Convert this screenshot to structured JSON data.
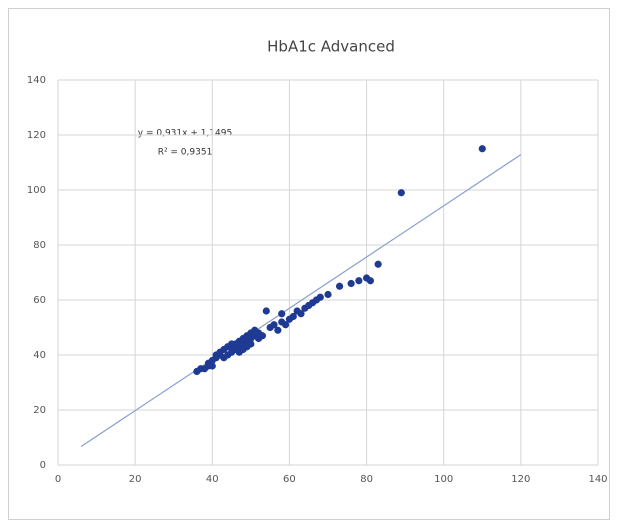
{
  "chart_data": {
    "type": "scatter",
    "title": "HbA1c Advanced",
    "annotations": [
      "y = 0,931x + 1,1495",
      "R² = 0,9351"
    ],
    "x": [
      36,
      37,
      38,
      39,
      39,
      40,
      40,
      41,
      41,
      42,
      42,
      43,
      43,
      44,
      44,
      45,
      45,
      45,
      46,
      46,
      47,
      47,
      47,
      48,
      48,
      48,
      49,
      49,
      49,
      50,
      50,
      50,
      51,
      51,
      52,
      52,
      53,
      54,
      55,
      56,
      57,
      58,
      58,
      59,
      60,
      61,
      62,
      63,
      64,
      65,
      66,
      67,
      68,
      70,
      73,
      76,
      78,
      80,
      81,
      83,
      89,
      110
    ],
    "values": [
      34,
      35,
      35,
      37,
      36,
      36,
      38,
      39,
      40,
      40,
      41,
      39,
      42,
      40,
      43,
      41,
      43,
      44,
      42,
      44,
      43,
      45,
      41,
      44,
      46,
      42,
      45,
      47,
      43,
      46,
      48,
      44,
      47,
      49,
      48,
      46,
      47,
      56,
      50,
      51,
      49,
      52,
      55,
      51,
      53,
      54,
      56,
      55,
      57,
      58,
      59,
      60,
      61,
      62,
      65,
      66,
      67,
      68,
      67,
      73,
      99,
      115
    ],
    "color": "#1f3a93",
    "trendline": {
      "slope": 0.931,
      "intercept": 1.1495,
      "xrange": [
        6,
        120
      ],
      "color": "#8a9fd0"
    },
    "xlim": [
      0,
      140
    ],
    "ylim": [
      0,
      140
    ],
    "xticks": [
      0,
      20,
      40,
      60,
      80,
      100,
      120,
      140
    ],
    "yticks": [
      0,
      20,
      40,
      60,
      80,
      100,
      120,
      140
    ],
    "grid": true
  }
}
